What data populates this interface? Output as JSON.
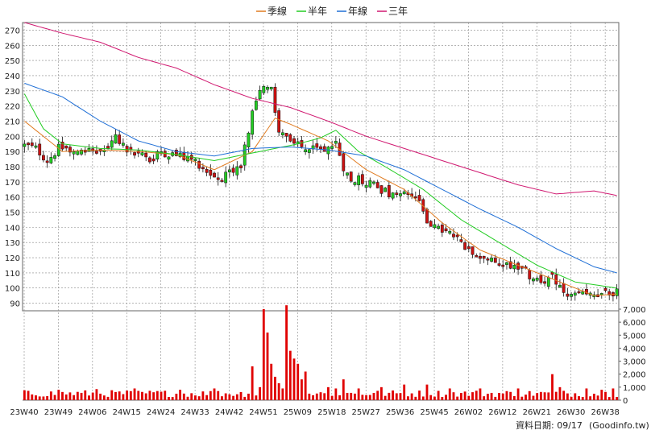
{
  "legend": [
    {
      "name": "季線",
      "color": "#e07b20"
    },
    {
      "name": "半年",
      "color": "#22cc22"
    },
    {
      "name": "年線",
      "color": "#1f6fd6"
    },
    {
      "name": "三年",
      "color": "#d01870"
    }
  ],
  "footer": {
    "date_text": "資料日期: 09/17",
    "source_text": "(Goodinfo.tw)"
  },
  "colors": {
    "up_candle": "#22cc22",
    "down_candle": "#cc1111",
    "volume_bar": "#e00000",
    "grid": "#888888"
  },
  "chart_data": [
    {
      "type": "candlestick",
      "title": "",
      "x_labels": [
        "23W40",
        "23W49",
        "24W06",
        "24W15",
        "24W24",
        "24W33",
        "24W42",
        "24W51",
        "25W09",
        "25W18",
        "25W27",
        "25W36",
        "25W45",
        "26W02",
        "26W12",
        "26W21",
        "26W30",
        "26W38"
      ],
      "ylim": [
        85,
        275
      ],
      "y_ticks": [
        90,
        100,
        110,
        120,
        130,
        140,
        150,
        160,
        170,
        180,
        190,
        200,
        210,
        220,
        230,
        240,
        250,
        260,
        270
      ],
      "grid": true,
      "legend_position": "top-center",
      "weeks": 157,
      "close_anchors": [
        [
          0,
          194
        ],
        [
          3,
          192
        ],
        [
          6,
          184
        ],
        [
          9,
          192
        ],
        [
          12,
          192
        ],
        [
          15,
          190
        ],
        [
          18,
          190
        ],
        [
          21,
          190
        ],
        [
          24,
          200
        ],
        [
          27,
          190
        ],
        [
          30,
          188
        ],
        [
          33,
          184
        ],
        [
          36,
          190
        ],
        [
          39,
          188
        ],
        [
          42,
          186
        ],
        [
          45,
          184
        ],
        [
          48,
          177
        ],
        [
          51,
          172
        ],
        [
          54,
          175
        ],
        [
          57,
          182
        ],
        [
          60,
          215
        ],
        [
          63,
          235
        ],
        [
          65,
          230
        ],
        [
          66,
          214
        ],
        [
          67,
          205
        ],
        [
          70,
          195
        ],
        [
          73,
          193
        ],
        [
          76,
          192
        ],
        [
          79,
          190
        ],
        [
          82,
          196
        ],
        [
          84,
          180
        ],
        [
          86,
          170
        ],
        [
          88,
          172
        ],
        [
          91,
          170
        ],
        [
          94,
          165
        ],
        [
          97,
          160
        ],
        [
          100,
          162
        ],
        [
          103,
          160
        ],
        [
          106,
          145
        ],
        [
          109,
          138
        ],
        [
          112,
          136
        ],
        [
          115,
          130
        ],
        [
          118,
          125
        ],
        [
          121,
          120
        ],
        [
          124,
          116
        ],
        [
          127,
          116
        ],
        [
          130,
          114
        ],
        [
          133,
          108
        ],
        [
          136,
          105
        ],
        [
          139,
          106
        ],
        [
          142,
          96
        ],
        [
          145,
          94
        ],
        [
          148,
          95
        ],
        [
          151,
          95
        ],
        [
          154,
          96
        ],
        [
          156,
          98
        ]
      ],
      "series": [
        {
          "name": "季線",
          "values": [
            [
              0,
              210
            ],
            [
              10,
              190
            ],
            [
              20,
              191
            ],
            [
              30,
              190
            ],
            [
              40,
              188
            ],
            [
              50,
              178
            ],
            [
              60,
              190
            ],
            [
              66,
              212
            ],
            [
              70,
              208
            ],
            [
              80,
              197
            ],
            [
              90,
              178
            ],
            [
              100,
              165
            ],
            [
              110,
              143
            ],
            [
              120,
              125
            ],
            [
              130,
              115
            ],
            [
              140,
              105
            ],
            [
              150,
              95
            ],
            [
              156,
              96
            ]
          ]
        },
        {
          "name": "半年",
          "values": [
            [
              0,
              228
            ],
            [
              5,
              205
            ],
            [
              10,
              195
            ],
            [
              20,
              192
            ],
            [
              30,
              191
            ],
            [
              40,
              188
            ],
            [
              50,
              184
            ],
            [
              58,
              188
            ],
            [
              66,
              192
            ],
            [
              72,
              195
            ],
            [
              78,
              199
            ],
            [
              82,
              204
            ],
            [
              88,
              190
            ],
            [
              95,
              180
            ],
            [
              105,
              165
            ],
            [
              115,
              145
            ],
            [
              125,
              130
            ],
            [
              135,
              115
            ],
            [
              145,
              104
            ],
            [
              156,
              100
            ]
          ]
        },
        {
          "name": "年線",
          "values": [
            [
              0,
              235
            ],
            [
              10,
              226
            ],
            [
              20,
              210
            ],
            [
              30,
              197
            ],
            [
              40,
              190
            ],
            [
              50,
              187
            ],
            [
              60,
              192
            ],
            [
              70,
              193
            ],
            [
              80,
              191
            ],
            [
              90,
              187
            ],
            [
              100,
              178
            ],
            [
              110,
              165
            ],
            [
              120,
              152
            ],
            [
              130,
              140
            ],
            [
              140,
              126
            ],
            [
              150,
              114
            ],
            [
              156,
              110
            ]
          ]
        },
        {
          "name": "三年",
          "values": [
            [
              0,
              275
            ],
            [
              10,
              268
            ],
            [
              20,
              262
            ],
            [
              30,
              252
            ],
            [
              40,
              245
            ],
            [
              50,
              234
            ],
            [
              60,
              225
            ],
            [
              70,
              219
            ],
            [
              80,
              210
            ],
            [
              90,
              200
            ],
            [
              100,
              192
            ],
            [
              110,
              184
            ],
            [
              120,
              176
            ],
            [
              130,
              168
            ],
            [
              140,
              162
            ],
            [
              150,
              164
            ],
            [
              156,
              161
            ]
          ]
        }
      ]
    },
    {
      "type": "bar",
      "title": "",
      "ylim": [
        0,
        7000
      ],
      "y_ticks": [
        0,
        1000,
        2000,
        3000,
        4000,
        5000,
        6000,
        7000
      ],
      "y_tick_labels": [
        "0",
        "1,000",
        "2,000",
        "3,000",
        "4,000",
        "5,000",
        "6,000",
        "7,000"
      ],
      "series_name": "volume",
      "baseline": 600,
      "spikes": [
        [
          9,
          800
        ],
        [
          19,
          850
        ],
        [
          29,
          900
        ],
        [
          35,
          700
        ],
        [
          41,
          800
        ],
        [
          50,
          900
        ],
        [
          51,
          700
        ],
        [
          59,
          500
        ],
        [
          60,
          2600
        ],
        [
          62,
          1000
        ],
        [
          63,
          7000
        ],
        [
          64,
          5200
        ],
        [
          65,
          2800
        ],
        [
          66,
          1800
        ],
        [
          67,
          1300
        ],
        [
          68,
          900
        ],
        [
          69,
          7300
        ],
        [
          70,
          3800
        ],
        [
          71,
          3200
        ],
        [
          72,
          2800
        ],
        [
          73,
          1600
        ],
        [
          74,
          2200
        ],
        [
          80,
          1000
        ],
        [
          82,
          900
        ],
        [
          84,
          1600
        ],
        [
          88,
          900
        ],
        [
          94,
          1000
        ],
        [
          100,
          1200
        ],
        [
          106,
          1200
        ],
        [
          112,
          900
        ],
        [
          120,
          900
        ],
        [
          130,
          900
        ],
        [
          139,
          2000
        ],
        [
          141,
          1000
        ],
        [
          148,
          900
        ],
        [
          152,
          800
        ],
        [
          155,
          900
        ]
      ]
    }
  ]
}
